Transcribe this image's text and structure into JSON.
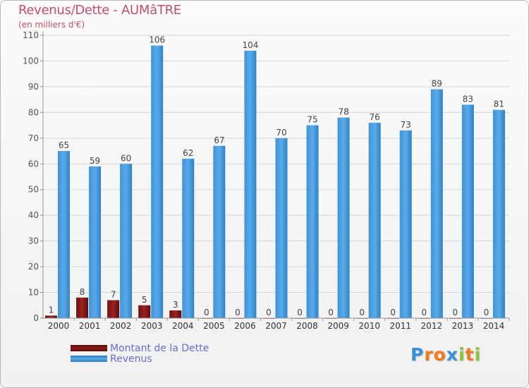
{
  "chart_data": {
    "type": "bar",
    "title": "Revenus/Dette - AUMâTRE",
    "subtitle": "(en milliers d'€)",
    "categories": [
      "2000",
      "2001",
      "2002",
      "2003",
      "2004",
      "2005",
      "2006",
      "2007",
      "2008",
      "2009",
      "2010",
      "2011",
      "2012",
      "2013",
      "2014"
    ],
    "series": [
      {
        "name": "Montant de la Dette",
        "color": "#8b1a1a",
        "values": [
          1,
          8,
          7,
          5,
          3,
          0,
          0,
          0,
          0,
          0,
          0,
          0,
          0,
          0,
          0
        ]
      },
      {
        "name": "Revenus",
        "color": "#4a9de0",
        "values": [
          65,
          59,
          60,
          106,
          62,
          67,
          104,
          70,
          75,
          78,
          76,
          73,
          89,
          83,
          81
        ]
      }
    ],
    "y_ticks": [
      0,
      10,
      20,
      30,
      40,
      50,
      60,
      70,
      80,
      90,
      100,
      110
    ],
    "ylim": [
      0,
      110
    ],
    "grid": "horizontal",
    "legend_placement": "bottom-left"
  },
  "brand": {
    "letters": [
      "P",
      "r",
      "o",
      "x",
      "i",
      "t",
      "i"
    ],
    "colors": [
      "#3b8fd6",
      "#f07a1c",
      "#f07a1c",
      "#3b8fd6",
      "#8cc63f",
      "#f07a1c",
      "#8cc63f"
    ]
  }
}
